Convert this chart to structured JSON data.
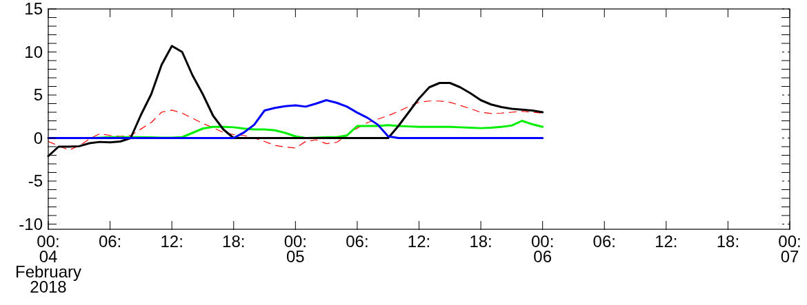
{
  "chart_data": {
    "type": "line",
    "x": [
      "2018-02-04T00:00",
      "2018-02-04T01:00",
      "2018-02-04T02:00",
      "2018-02-04T03:00",
      "2018-02-04T04:00",
      "2018-02-04T05:00",
      "2018-02-04T06:00",
      "2018-02-04T07:00",
      "2018-02-04T08:00",
      "2018-02-04T09:00",
      "2018-02-04T10:00",
      "2018-02-04T11:00",
      "2018-02-04T12:00",
      "2018-02-04T13:00",
      "2018-02-04T14:00",
      "2018-02-04T15:00",
      "2018-02-04T16:00",
      "2018-02-04T17:00",
      "2018-02-04T18:00",
      "2018-02-04T19:00",
      "2018-02-04T20:00",
      "2018-02-04T21:00",
      "2018-02-04T22:00",
      "2018-02-04T23:00",
      "2018-02-05T00:00",
      "2018-02-05T01:00",
      "2018-02-05T02:00",
      "2018-02-05T03:00",
      "2018-02-05T04:00",
      "2018-02-05T05:00",
      "2018-02-05T06:00",
      "2018-02-05T07:00",
      "2018-02-05T08:00",
      "2018-02-05T09:00",
      "2018-02-05T10:00",
      "2018-02-05T11:00",
      "2018-02-05T12:00",
      "2018-02-05T13:00",
      "2018-02-05T14:00",
      "2018-02-05T15:00",
      "2018-02-05T16:00",
      "2018-02-05T17:00",
      "2018-02-05T18:00",
      "2018-02-05T19:00",
      "2018-02-05T20:00",
      "2018-02-05T21:00",
      "2018-02-05T22:00",
      "2018-02-05T23:00",
      "2018-02-06T00:00"
    ],
    "xlim": [
      "2018-02-04T00:00",
      "2018-02-07T00:00"
    ],
    "xticks": [
      {
        "value": "2018-02-04T00:00",
        "label": "00:\n04\nFebruary\n2018"
      },
      {
        "value": "2018-02-04T06:00",
        "label": "06:"
      },
      {
        "value": "2018-02-04T12:00",
        "label": "12:"
      },
      {
        "value": "2018-02-04T18:00",
        "label": "18:"
      },
      {
        "value": "2018-02-05T00:00",
        "label": "00:\n05"
      },
      {
        "value": "2018-02-05T06:00",
        "label": "06:"
      },
      {
        "value": "2018-02-05T12:00",
        "label": "12:"
      },
      {
        "value": "2018-02-05T18:00",
        "label": "18:"
      },
      {
        "value": "2018-02-06T00:00",
        "label": "00:\n06"
      },
      {
        "value": "2018-02-06T06:00",
        "label": "06:"
      },
      {
        "value": "2018-02-06T12:00",
        "label": "12:"
      },
      {
        "value": "2018-02-06T18:00",
        "label": "18:"
      },
      {
        "value": "2018-02-07T00:00",
        "label": "00:\n07"
      }
    ],
    "ylim": [
      -10.6,
      15
    ],
    "yticks": [
      {
        "value": -10,
        "label": "-10"
      },
      {
        "value": -9,
        "label": null
      },
      {
        "value": -8,
        "label": null
      },
      {
        "value": -7,
        "label": null
      },
      {
        "value": -6,
        "label": null
      },
      {
        "value": -5,
        "label": "-5"
      },
      {
        "value": -4,
        "label": null
      },
      {
        "value": -3,
        "label": null
      },
      {
        "value": -2,
        "label": null
      },
      {
        "value": -1,
        "label": null
      },
      {
        "value": 0,
        "label": "0"
      },
      {
        "value": 1,
        "label": null
      },
      {
        "value": 2,
        "label": null
      },
      {
        "value": 3,
        "label": null
      },
      {
        "value": 4,
        "label": null
      },
      {
        "value": 5,
        "label": "5"
      },
      {
        "value": 6,
        "label": null
      },
      {
        "value": 7,
        "label": null
      },
      {
        "value": 8,
        "label": null
      },
      {
        "value": 9,
        "label": null
      },
      {
        "value": 10,
        "label": "10"
      },
      {
        "value": 11,
        "label": null
      },
      {
        "value": 12,
        "label": null
      },
      {
        "value": 13,
        "label": null
      },
      {
        "value": 14,
        "label": null
      },
      {
        "value": 15,
        "label": "15"
      }
    ],
    "grid": false,
    "series": [
      {
        "color": "#ff0000",
        "line_style": "dashed",
        "values": [
          -0.4,
          -0.9,
          -1.4,
          -0.9,
          -0.1,
          0.5,
          0.3,
          0.2,
          0.3,
          1.05,
          1.8,
          3.0,
          3.25,
          2.9,
          2.3,
          1.7,
          1.2,
          0.65,
          0.4,
          0.3,
          0.0,
          -0.4,
          -0.85,
          -1.05,
          -1.15,
          -0.4,
          -0.2,
          -0.65,
          -0.5,
          0.3,
          1.15,
          1.8,
          2.2,
          2.6,
          3.1,
          3.65,
          4.15,
          4.3,
          4.3,
          4.15,
          3.8,
          3.4,
          3.0,
          2.85,
          2.9,
          3.0,
          3.1,
          3.0,
          2.9
        ]
      },
      {
        "color": "#00ee00",
        "line_style": "solid",
        "values": [
          null,
          null,
          null,
          null,
          0,
          0.05,
          0.1,
          0.1,
          0.1,
          0.1,
          0.08,
          0.05,
          0.05,
          0.1,
          0.6,
          1.1,
          1.3,
          1.3,
          1.25,
          1.1,
          1.0,
          1.0,
          0.9,
          0.6,
          0.2,
          0.0,
          0.05,
          0.1,
          0.1,
          0.3,
          1.4,
          1.4,
          1.4,
          1.5,
          1.4,
          1.35,
          1.3,
          1.3,
          1.3,
          1.3,
          1.25,
          1.2,
          1.15,
          1.2,
          1.3,
          1.45,
          2.0,
          1.6,
          1.3
        ]
      },
      {
        "color": "#000000",
        "line_style": "solid",
        "values": [
          -2.1,
          -1.0,
          -1.0,
          -0.95,
          -0.6,
          -0.45,
          -0.5,
          -0.4,
          0,
          2.7,
          5.1,
          8.5,
          10.7,
          10.0,
          7.3,
          5.1,
          2.6,
          1.0,
          0,
          0,
          0,
          0,
          0,
          0,
          0,
          0,
          0,
          0,
          0,
          0,
          0,
          0,
          0,
          0,
          1.4,
          3.0,
          4.6,
          5.9,
          6.4,
          6.4,
          5.9,
          5.2,
          4.4,
          3.9,
          3.6,
          3.4,
          3.3,
          3.2,
          3.0
        ]
      },
      {
        "color": "#0000ff",
        "line_style": "solid",
        "values": [
          0,
          0,
          0,
          0,
          0,
          0,
          0,
          0,
          0,
          0,
          0,
          0,
          0,
          0,
          0,
          0,
          0,
          0,
          0,
          0.65,
          1.55,
          3.2,
          3.5,
          3.7,
          3.8,
          3.65,
          4.0,
          4.4,
          4.1,
          3.65,
          2.95,
          2.35,
          1.55,
          0.2,
          0,
          0,
          0,
          0,
          0,
          0,
          0,
          0,
          0,
          0,
          0,
          0,
          0,
          0,
          0
        ]
      }
    ]
  }
}
